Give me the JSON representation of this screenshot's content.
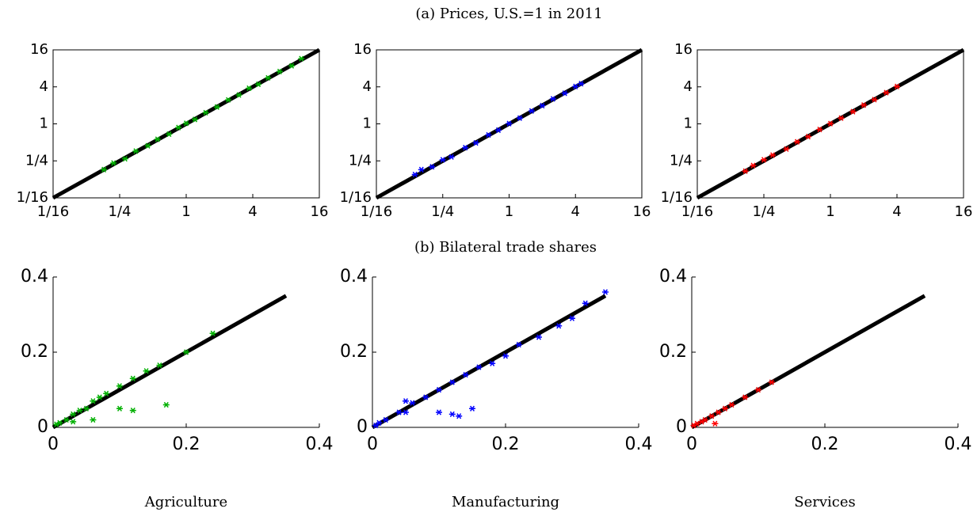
{
  "chart_data": [
    {
      "type": "scatter",
      "log": true,
      "color": "#00b000",
      "xlim": [
        0.0625,
        16
      ],
      "ylim": [
        0.0625,
        16
      ],
      "xticks": [
        {
          "value": 0.0625,
          "label": "1/16"
        },
        {
          "value": 0.25,
          "label": "1/4"
        },
        1,
        4,
        16
      ],
      "yticks": [
        {
          "value": 0.0625,
          "label": "1/16"
        },
        {
          "value": 0.25,
          "label": "1/4"
        },
        1,
        4,
        16
      ],
      "x": [
        0.18,
        0.22,
        0.28,
        0.35,
        0.45,
        0.55,
        0.7,
        0.85,
        1,
        1.2,
        1.5,
        1.9,
        2.4,
        3,
        3.7,
        4.5,
        5.5,
        7,
        9,
        11
      ],
      "y": [
        0.18,
        0.23,
        0.27,
        0.36,
        0.44,
        0.56,
        0.68,
        0.87,
        1.02,
        1.18,
        1.52,
        1.88,
        2.45,
        2.95,
        3.8,
        4.4,
        5.6,
        7.1,
        8.8,
        11.5
      ],
      "reference_line": {
        "color": "#000000",
        "x": [
          0.0625,
          16
        ],
        "y": [
          0.0625,
          16
        ]
      }
    },
    {
      "type": "scatter",
      "log": true,
      "color": "#0000ff",
      "title": "(a) Prices, U.S.=1 in 2011",
      "xlim": [
        0.0625,
        16
      ],
      "ylim": [
        0.0625,
        16
      ],
      "xticks": [
        {
          "value": 0.0625,
          "label": "1/16"
        },
        {
          "value": 0.25,
          "label": "1/4"
        },
        1,
        4,
        16
      ],
      "yticks": [
        {
          "value": 0.0625,
          "label": "1/16"
        },
        {
          "value": 0.25,
          "label": "1/4"
        },
        1,
        4,
        16
      ],
      "x": [
        0.14,
        0.16,
        0.2,
        0.25,
        0.3,
        0.4,
        0.5,
        0.65,
        0.8,
        1,
        1.25,
        1.6,
        2,
        2.5,
        3.2,
        4,
        4.5
      ],
      "y": [
        0.15,
        0.18,
        0.2,
        0.26,
        0.29,
        0.41,
        0.49,
        0.66,
        0.79,
        1.01,
        1.24,
        1.62,
        1.98,
        2.55,
        3.15,
        4.05,
        4.5
      ],
      "reference_line": {
        "color": "#000000",
        "x": [
          0.0625,
          16
        ],
        "y": [
          0.0625,
          16
        ]
      }
    },
    {
      "type": "scatter",
      "log": true,
      "color": "#ff0000",
      "xlim": [
        0.0625,
        16
      ],
      "ylim": [
        0.0625,
        16
      ],
      "xticks": [
        {
          "value": 0.0625,
          "label": "1/16"
        },
        {
          "value": 0.25,
          "label": "1/4"
        },
        1,
        4,
        16
      ],
      "yticks": [
        {
          "value": 0.0625,
          "label": "1/16"
        },
        {
          "value": 0.25,
          "label": "1/4"
        },
        1,
        4,
        16
      ],
      "x": [
        0.17,
        0.2,
        0.25,
        0.3,
        0.4,
        0.5,
        0.63,
        0.8,
        1,
        1.25,
        1.6,
        2,
        2.5,
        3.2,
        4
      ],
      "y": [
        0.17,
        0.21,
        0.26,
        0.31,
        0.39,
        0.51,
        0.62,
        0.81,
        1.01,
        1.24,
        1.58,
        2.02,
        2.48,
        3.22,
        4.05
      ],
      "reference_line": {
        "color": "#000000",
        "x": [
          0.0625,
          16
        ],
        "y": [
          0.0625,
          16
        ]
      }
    },
    {
      "type": "scatter",
      "log": false,
      "color": "#00b000",
      "xlabel": "Agriculture",
      "xlim": [
        0,
        0.4
      ],
      "ylim": [
        0,
        0.4
      ],
      "xticks": [
        0,
        0.2,
        0.4
      ],
      "yticks": [
        0,
        0.2,
        0.4
      ],
      "x": [
        0.005,
        0.01,
        0.02,
        0.03,
        0.04,
        0.05,
        0.06,
        0.07,
        0.08,
        0.1,
        0.12,
        0.14,
        0.16,
        0.17,
        0.2,
        0.24,
        0.1,
        0.12,
        0.03,
        0.06
      ],
      "y": [
        0.008,
        0.012,
        0.02,
        0.035,
        0.045,
        0.05,
        0.07,
        0.08,
        0.09,
        0.11,
        0.13,
        0.15,
        0.165,
        0.06,
        0.2,
        0.25,
        0.05,
        0.045,
        0.015,
        0.02
      ],
      "reference_line": {
        "color": "#000000",
        "x": [
          0,
          0.35
        ],
        "y": [
          0,
          0.35
        ]
      }
    },
    {
      "type": "scatter",
      "log": false,
      "color": "#0000ff",
      "xlabel": "Manufacturing",
      "title": "(b) Bilateral trade shares",
      "xlim": [
        0,
        0.4
      ],
      "ylim": [
        0,
        0.4
      ],
      "xticks": [
        0,
        0.2,
        0.4
      ],
      "yticks": [
        0,
        0.2,
        0.4
      ],
      "x": [
        0.005,
        0.01,
        0.02,
        0.04,
        0.05,
        0.06,
        0.08,
        0.1,
        0.12,
        0.14,
        0.16,
        0.18,
        0.2,
        0.22,
        0.25,
        0.28,
        0.3,
        0.32,
        0.35,
        0.05,
        0.1,
        0.12,
        0.13,
        0.15
      ],
      "y": [
        0.005,
        0.012,
        0.02,
        0.04,
        0.07,
        0.065,
        0.08,
        0.1,
        0.12,
        0.14,
        0.16,
        0.17,
        0.19,
        0.22,
        0.24,
        0.27,
        0.29,
        0.33,
        0.36,
        0.04,
        0.04,
        0.035,
        0.03,
        0.05
      ],
      "reference_line": {
        "color": "#000000",
        "x": [
          0,
          0.35
        ],
        "y": [
          0,
          0.35
        ]
      }
    },
    {
      "type": "scatter",
      "log": false,
      "color": "#ff0000",
      "xlabel": "Services",
      "xlim": [
        0,
        0.4
      ],
      "ylim": [
        0,
        0.4
      ],
      "xticks": [
        0,
        0.2,
        0.4
      ],
      "yticks": [
        0,
        0.2,
        0.4
      ],
      "x": [
        0.003,
        0.008,
        0.015,
        0.02,
        0.03,
        0.04,
        0.05,
        0.06,
        0.08,
        0.1,
        0.12,
        0.035
      ],
      "y": [
        0.005,
        0.01,
        0.015,
        0.02,
        0.03,
        0.04,
        0.05,
        0.06,
        0.08,
        0.1,
        0.12,
        0.01
      ],
      "reference_line": {
        "color": "#000000",
        "x": [
          0,
          0.35
        ],
        "y": [
          0,
          0.35
        ]
      }
    }
  ]
}
